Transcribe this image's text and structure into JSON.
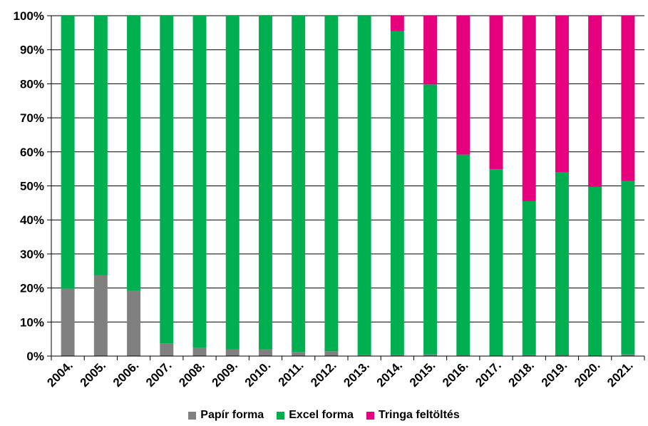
{
  "chart_data": {
    "type": "bar",
    "stacked": true,
    "normalized": true,
    "categories": [
      "2004.",
      "2005.",
      "2006.",
      "2007.",
      "2008.",
      "2009.",
      "2010.",
      "2011.",
      "2012.",
      "2013.",
      "2014.",
      "2015.",
      "2016.",
      "2017.",
      "2018.",
      "2019.",
      "2020.",
      "2021."
    ],
    "series": [
      {
        "name": "Papír forma",
        "color": "#808080",
        "values": [
          19.8,
          23.7,
          19.2,
          3.7,
          2.5,
          1.9,
          2.0,
          1.2,
          1.4,
          0.3,
          0.3,
          0.5,
          0.2,
          0.1,
          0.3,
          0.2,
          0.1,
          0.5
        ]
      },
      {
        "name": "Excel forma",
        "color": "#00B050",
        "values": [
          80.2,
          76.3,
          80.8,
          96.3,
          97.5,
          98.1,
          98.0,
          98.8,
          98.6,
          99.7,
          95.2,
          79.3,
          59.0,
          54.8,
          45.2,
          53.8,
          49.6,
          50.9
        ]
      },
      {
        "name": "Tringa feltöltés",
        "color": "#E6007E",
        "values": [
          0,
          0,
          0,
          0,
          0,
          0,
          0,
          0,
          0,
          0,
          4.5,
          20.2,
          40.8,
          45.1,
          54.5,
          46.0,
          50.3,
          48.6
        ]
      }
    ],
    "ylim": [
      0,
      100
    ],
    "yticks": [
      "0%",
      "10%",
      "20%",
      "30%",
      "40%",
      "50%",
      "60%",
      "70%",
      "80%",
      "90%",
      "100%"
    ],
    "grid": true,
    "legend_position": "bottom",
    "title": "",
    "xlabel": "",
    "ylabel": ""
  }
}
